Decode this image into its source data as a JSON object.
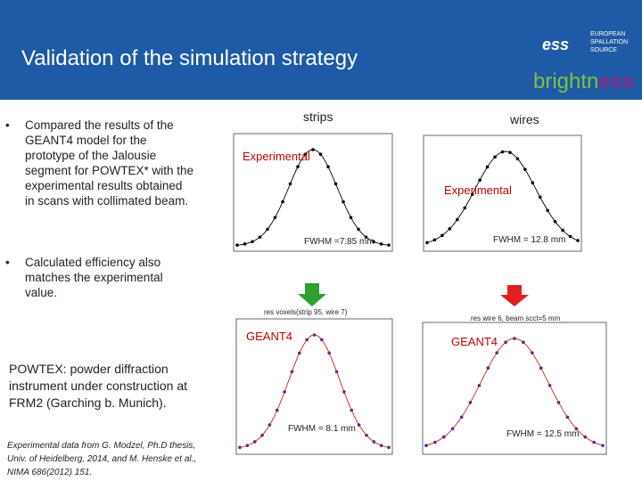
{
  "header": {
    "title": "Validation of the simulation strategy",
    "logo_lines": [
      "EUROPEAN",
      "SPALLATION",
      "SOURCE"
    ],
    "logo_mark": "ess",
    "brand_start": "brightn",
    "brand_end": "ess"
  },
  "bullets": [
    "Compared the results of the GEANT4 model for the prototype of the Jalousie segment for POWTEX* with the experimental results obtained in scans with collimated beam.",
    "Calculated efficiency also matches the experimental value."
  ],
  "note": "POWTEX: powder diffraction instrument under construction at FRM2 (Garching b. Munich).",
  "reference": "Experimental data from G. Modzel, Ph.D thesis, Univ. of Heidelberg, 2014, and M. Henske et al., NIMA 686(2012) 151.",
  "figures": {
    "strips_label": "strips",
    "wires_label": "wires",
    "exp_left": "Experimental",
    "exp_right": "Experimental",
    "fwhm_exp_left": "FWHM =7.85 mm",
    "fwhm_exp_right": "FWHM = 12.8 mm",
    "sim_title_left": "res voxels(strip 95, wire 7)",
    "sim_title_right": "res wire 6, beam scct=5 mm",
    "geant_left": "GEANT4",
    "geant_right": "GEANT4",
    "fwhm_sim_left": "FWHM = 8.1 mm",
    "fwhm_sim_right": "FWHM = 12.5 mm"
  }
}
